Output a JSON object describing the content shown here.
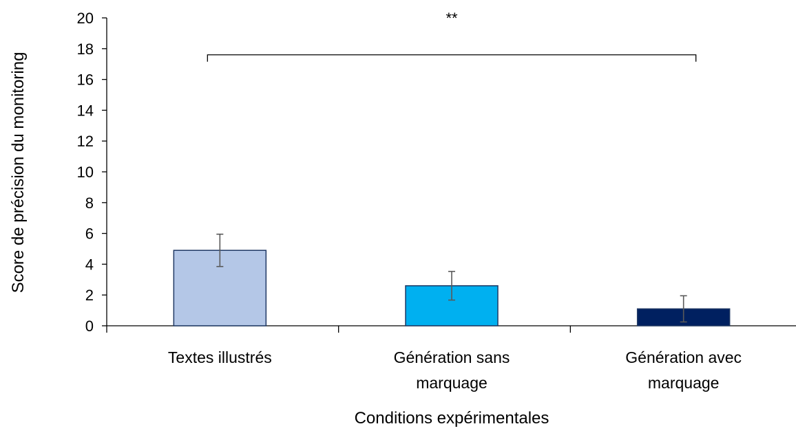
{
  "chart_data": {
    "type": "bar",
    "categories": [
      [
        "Textes illustrés"
      ],
      [
        "Génération sans",
        "marquage"
      ],
      [
        "Génération avec",
        "marquage"
      ]
    ],
    "values": [
      4.9,
      2.6,
      1.1
    ],
    "errors": [
      1.05,
      0.93,
      0.85
    ],
    "colors": [
      "#b4c7e7",
      "#00b0f0",
      "#002060"
    ],
    "bar_border_color": "#1f3864",
    "error_bar_color": "#595959",
    "xlabel": "Conditions expérimentales",
    "ylabel": "Score de précision du monitoring",
    "ylim": [
      0,
      20
    ],
    "yticks": [
      0,
      2,
      4,
      6,
      8,
      10,
      12,
      14,
      16,
      18,
      20
    ],
    "grid": false,
    "significance": {
      "label": "**",
      "from_category": 0,
      "to_category": 2,
      "y": 17.6
    }
  }
}
